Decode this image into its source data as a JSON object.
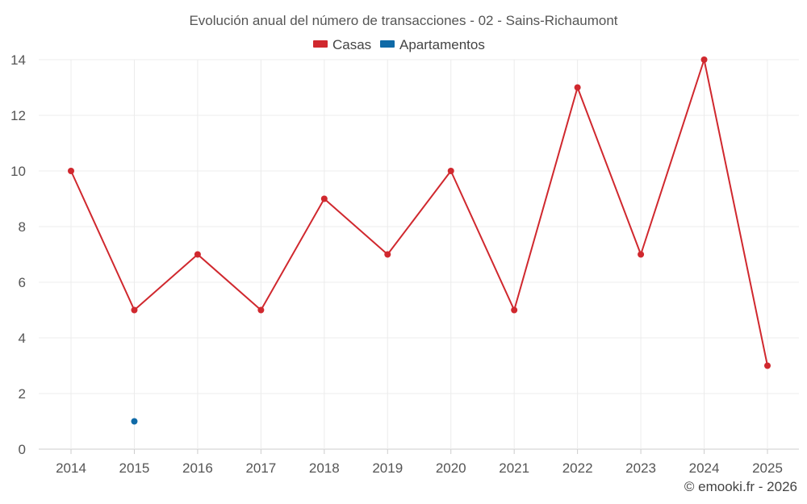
{
  "chart_data": {
    "type": "line",
    "title": "Evolución anual del número de transacciones - 02 - Sains-Richaumont",
    "categories": [
      "2014",
      "2015",
      "2016",
      "2017",
      "2018",
      "2019",
      "2020",
      "2021",
      "2022",
      "2023",
      "2024",
      "2025"
    ],
    "series": [
      {
        "name": "Casas",
        "color": "#d0282e",
        "values": [
          10,
          5,
          7,
          5,
          9,
          7,
          10,
          5,
          13,
          7,
          14,
          3
        ]
      },
      {
        "name": "Apartamentos",
        "color": "#0f6aa7",
        "values": [
          null,
          1,
          null,
          null,
          null,
          null,
          null,
          null,
          null,
          null,
          null,
          null
        ]
      }
    ],
    "ylim": [
      0,
      14
    ],
    "yticks": [
      0,
      2,
      4,
      6,
      8,
      10,
      12,
      14
    ],
    "xlabel": "",
    "ylabel": "",
    "legend_position": "top-center",
    "grid": true
  },
  "credit": "© emooki.fr - 2026"
}
